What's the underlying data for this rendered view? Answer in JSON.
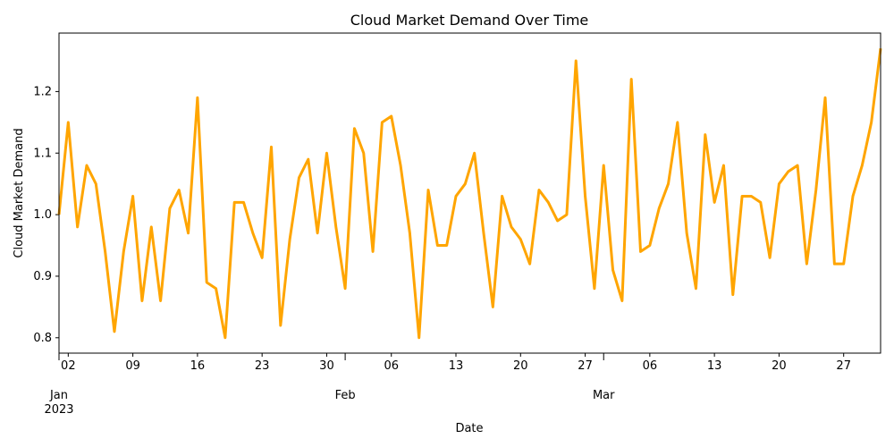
{
  "chart_data": {
    "type": "line",
    "title": "Cloud Market Demand Over Time",
    "xlabel": "Date",
    "ylabel": "Cloud Market Demand",
    "line_color": "#FFA500",
    "ylim": [
      0.775,
      1.295
    ],
    "x_start": "2023-01-01",
    "x_end": "2023-03-31",
    "y_ticks": [
      0.8,
      0.9,
      1.0,
      1.1,
      1.2
    ],
    "y_tick_labels": [
      "0.8",
      "0.9",
      "1.0",
      "1.1",
      "1.2"
    ],
    "x_ticks": [
      {
        "day": 1,
        "label": "02"
      },
      {
        "day": 8,
        "label": "09"
      },
      {
        "day": 15,
        "label": "16"
      },
      {
        "day": 22,
        "label": "23"
      },
      {
        "day": 29,
        "label": "30"
      },
      {
        "day": 36,
        "label": "06"
      },
      {
        "day": 43,
        "label": "13"
      },
      {
        "day": 50,
        "label": "20"
      },
      {
        "day": 57,
        "label": "27"
      },
      {
        "day": 64,
        "label": "06"
      },
      {
        "day": 71,
        "label": "13"
      },
      {
        "day": 78,
        "label": "20"
      },
      {
        "day": 85,
        "label": "27"
      }
    ],
    "month_labels": [
      {
        "day": 0,
        "label": "Jan",
        "sublabel": "2023"
      },
      {
        "day": 31,
        "label": "Feb",
        "sublabel": ""
      },
      {
        "day": 59,
        "label": "Mar",
        "sublabel": ""
      }
    ],
    "values": [
      1.0,
      1.15,
      0.98,
      1.08,
      1.05,
      0.94,
      0.81,
      0.94,
      1.03,
      0.86,
      0.98,
      0.86,
      1.01,
      1.04,
      0.97,
      1.19,
      0.89,
      0.88,
      0.8,
      1.02,
      1.02,
      0.97,
      0.93,
      1.11,
      0.82,
      0.96,
      1.06,
      1.09,
      0.97,
      1.1,
      0.98,
      0.88,
      1.14,
      1.1,
      0.94,
      1.15,
      1.16,
      1.08,
      0.97,
      0.8,
      1.04,
      0.95,
      0.95,
      1.03,
      1.05,
      1.1,
      0.97,
      0.85,
      1.03,
      0.98,
      0.96,
      0.92,
      1.04,
      1.02,
      0.99,
      1.0,
      1.25,
      1.03,
      0.88,
      1.08,
      0.91,
      0.86,
      1.22,
      0.94,
      0.95,
      1.01,
      1.05,
      1.15,
      0.97,
      0.88,
      1.13,
      1.02,
      1.08,
      0.87,
      1.03,
      1.03,
      1.02,
      0.93,
      1.05,
      1.07,
      1.08,
      0.92,
      1.04,
      1.19,
      0.92,
      0.92,
      1.03,
      1.08,
      1.15,
      1.27
    ]
  }
}
